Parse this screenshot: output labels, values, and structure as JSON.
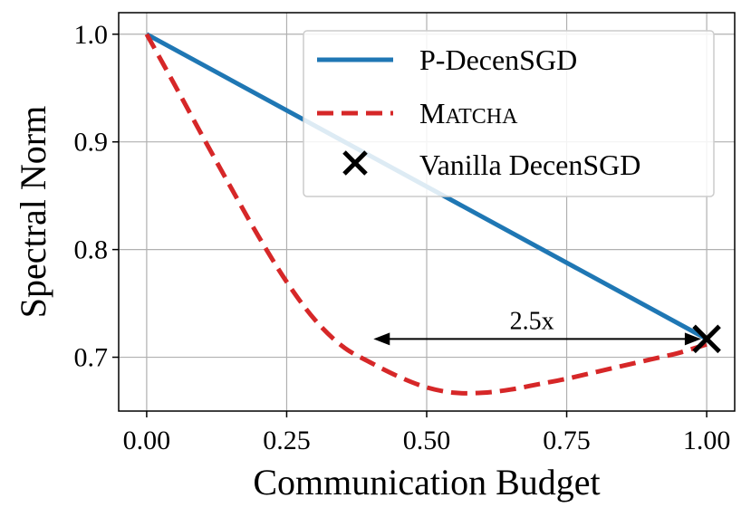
{
  "chart_data": {
    "type": "line",
    "xlabel": "Communication Budget",
    "ylabel": "Spectral Norm",
    "xlim": [
      -0.05,
      1.05
    ],
    "ylim": [
      0.65,
      1.02
    ],
    "xticks": [
      0.0,
      0.25,
      0.5,
      0.75,
      1.0
    ],
    "xtick_labels": [
      "0.00",
      "0.25",
      "0.50",
      "0.75",
      "1.00"
    ],
    "yticks": [
      0.7,
      0.8,
      0.9,
      1.0
    ],
    "ytick_labels": [
      "0.7",
      "0.8",
      "0.9",
      "1.0"
    ],
    "grid": true,
    "legend_position": "top-right",
    "series": [
      {
        "name": "P-DecenSGD",
        "style": "solid",
        "color": "#1f77b4",
        "x": [
          0.0,
          1.0
        ],
        "y": [
          1.0,
          0.717
        ]
      },
      {
        "name_lead": "M",
        "name_rest": "ATCHA",
        "style": "dashed",
        "color": "#d62728",
        "x": [
          0.0,
          0.05,
          0.1,
          0.15,
          0.2,
          0.25,
          0.3,
          0.35,
          0.4,
          0.45,
          0.5,
          0.55,
          0.6,
          0.65,
          0.7,
          0.75,
          0.8,
          0.85,
          0.9,
          0.95,
          1.0
        ],
        "y": [
          1.0,
          0.953,
          0.905,
          0.858,
          0.812,
          0.77,
          0.735,
          0.71,
          0.695,
          0.682,
          0.672,
          0.667,
          0.667,
          0.67,
          0.675,
          0.68,
          0.686,
          0.692,
          0.698,
          0.704,
          0.712
        ]
      },
      {
        "name": "Vanilla DecenSGD",
        "style": "marker-x",
        "color": "#000000",
        "x": [
          1.0
        ],
        "y": [
          0.717
        ]
      }
    ],
    "annotations": [
      {
        "text": "2.5x",
        "arrow_from": [
          0.405,
          0.717
        ],
        "arrow_to": [
          0.99,
          0.717
        ]
      }
    ]
  }
}
